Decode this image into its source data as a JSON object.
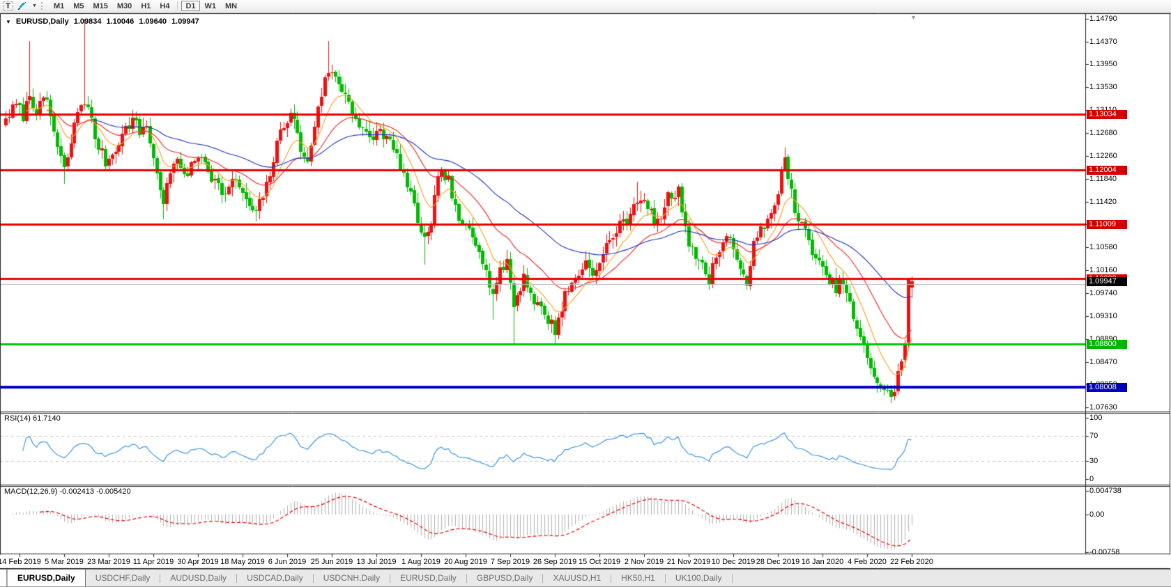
{
  "toolbar": {
    "text_tool_label": "T",
    "timeframes": [
      "M1",
      "M5",
      "M15",
      "M30",
      "H1",
      "H4",
      "D1",
      "W1",
      "MN"
    ],
    "active_timeframe": "D1"
  },
  "icons": {
    "collapse_triangle": "▼",
    "shift_marker": "▼",
    "dropdown_caret": "▼"
  },
  "chart": {
    "title": {
      "symbol_period": "EURUSD,Daily",
      "open": "1.09834",
      "high": "1.10046",
      "low": "1.09640",
      "close": "1.09947"
    }
  },
  "chart_data": {
    "type": "candlestick",
    "symbol": "EURUSD",
    "period": "Daily",
    "last_candle": {
      "open": 1.09834,
      "high": 1.10046,
      "low": 1.0964,
      "close": 1.09947
    },
    "price_axis": {
      "ticks": [
        "1.14790",
        "1.14370",
        "1.13950",
        "1.13530",
        "1.13110",
        "1.12680",
        "1.12260",
        "1.11840",
        "1.11420",
        "1.11000",
        "1.10580",
        "1.10160",
        "1.09740",
        "1.09310",
        "1.08890",
        "1.08470",
        "1.08050",
        "1.07630"
      ],
      "top_tick": 1.1479,
      "bottom_tick": 1.0763
    },
    "h_lines": [
      {
        "price": 1.13034,
        "label": "1.13034",
        "color": "#ee0000",
        "chip_bg": "#d40000",
        "width": 3
      },
      {
        "price": 1.12004,
        "label": "1.12004",
        "color": "#ee0000",
        "chip_bg": "#d40000",
        "width": 3
      },
      {
        "price": 1.11009,
        "label": "1.11009",
        "color": "#ee0000",
        "chip_bg": "#d40000",
        "width": 3
      },
      {
        "price": 1.10008,
        "label": "1.10008",
        "color": "#ee0000",
        "chip_bg": "#d40000",
        "width": 3
      },
      {
        "price": 1.088,
        "label": "1.08800",
        "color": "#00c400",
        "chip_bg": "#00b400",
        "width": 3
      },
      {
        "price": 1.08008,
        "label": "1.08008",
        "color": "#0000c8",
        "chip_bg": "#0000bb",
        "width": 4
      },
      {
        "price": 1.099,
        "label": null,
        "color": "#b8b8b8",
        "chip_bg": null,
        "width": 1
      }
    ],
    "current_price": {
      "label": "1.09947",
      "value": 1.09947,
      "chip_bg": "#000000"
    },
    "date_ticks": [
      "14 Feb 2019",
      "5 Mar 2019",
      "23 Mar 2019",
      "11 Apr 2019",
      "30 Apr 2019",
      "18 May 2019",
      "6 Jun 2019",
      "25 Jun 2019",
      "13 Jul 2019",
      "1 Aug 2019",
      "20 Aug 2019",
      "7 Sep 2019",
      "26 Sep 2019",
      "15 Oct 2019",
      "2 Nov 2019",
      "21 Nov 2019",
      "10 Dec 2019",
      "28 Dec 2019",
      "16 Jan 2020",
      "4 Feb 2020",
      "22 Feb 2020"
    ],
    "candles": {
      "count": 265,
      "candles_per_tick": 13,
      "first_tick_index": 4,
      "up_color": "#ee1111",
      "down_color": "#00bb00",
      "anchors": [
        [
          0,
          1.1295
        ],
        [
          3,
          1.132
        ],
        [
          5,
          1.13
        ],
        [
          7,
          1.134
        ],
        [
          9,
          1.131
        ],
        [
          12,
          1.133
        ],
        [
          15,
          1.124
        ],
        [
          17,
          1.12
        ],
        [
          19,
          1.125
        ],
        [
          21,
          1.131
        ],
        [
          23,
          1.133
        ],
        [
          25,
          1.129
        ],
        [
          26,
          1.126
        ],
        [
          29,
          1.1215
        ],
        [
          31,
          1.123
        ],
        [
          33,
          1.1255
        ],
        [
          35,
          1.1275
        ],
        [
          37,
          1.1295
        ],
        [
          39,
          1.127
        ],
        [
          41,
          1.1285
        ],
        [
          44,
          1.119
        ],
        [
          46,
          1.1145
        ],
        [
          49,
          1.1215
        ],
        [
          51,
          1.1205
        ],
        [
          53,
          1.1195
        ],
        [
          55,
          1.1215
        ],
        [
          57,
          1.123
        ],
        [
          60,
          1.119
        ],
        [
          62,
          1.117
        ],
        [
          64,
          1.1155
        ],
        [
          67,
          1.1185
        ],
        [
          70,
          1.114
        ],
        [
          73,
          1.112
        ],
        [
          76,
          1.117
        ],
        [
          78,
          1.122
        ],
        [
          80,
          1.127
        ],
        [
          83,
          1.131
        ],
        [
          86,
          1.124
        ],
        [
          88,
          1.121
        ],
        [
          91,
          1.132
        ],
        [
          94,
          1.1385
        ],
        [
          97,
          1.136
        ],
        [
          100,
          1.133
        ],
        [
          103,
          1.128
        ],
        [
          106,
          1.1255
        ],
        [
          109,
          1.1275
        ],
        [
          112,
          1.125
        ],
        [
          115,
          1.121
        ],
        [
          118,
          1.115
        ],
        [
          120,
          1.111
        ],
        [
          122,
          1.107
        ],
        [
          124,
          1.109
        ],
        [
          126,
          1.12
        ],
        [
          129,
          1.118
        ],
        [
          132,
          1.11
        ],
        [
          135,
          1.1095
        ],
        [
          138,
          1.106
        ],
        [
          140,
          1.101
        ],
        [
          142,
          1.0975
        ],
        [
          144,
          1.101
        ],
        [
          146,
          1.1035
        ],
        [
          148,
          1.095
        ],
        [
          151,
          1.1005
        ],
        [
          154,
          1.096
        ],
        [
          157,
          1.0935
        ],
        [
          160,
          1.0905
        ],
        [
          163,
          1.097
        ],
        [
          166,
          1.1
        ],
        [
          169,
          1.103
        ],
        [
          172,
          1.101
        ],
        [
          175,
          1.106
        ],
        [
          178,
          1.109
        ],
        [
          181,
          1.111
        ],
        [
          184,
          1.115
        ],
        [
          187,
          1.113
        ],
        [
          190,
          1.11
        ],
        [
          193,
          1.115
        ],
        [
          196,
          1.116
        ],
        [
          199,
          1.107
        ],
        [
          202,
          1.103
        ],
        [
          205,
          1.1
        ],
        [
          208,
          1.106
        ],
        [
          211,
          1.108
        ],
        [
          214,
          1.101
        ],
        [
          216,
          1.0985
        ],
        [
          218,
          1.108
        ],
        [
          221,
          1.109
        ],
        [
          224,
          1.113
        ],
        [
          227,
          1.123
        ],
        [
          230,
          1.112
        ],
        [
          233,
          1.1085
        ],
        [
          236,
          1.104
        ],
        [
          239,
          1.1
        ],
        [
          242,
          1.0985
        ],
        [
          244,
          1.0995
        ],
        [
          246,
          1.095
        ],
        [
          248,
          1.0905
        ],
        [
          250,
          1.087
        ],
        [
          252,
          1.084
        ],
        [
          254,
          1.081
        ],
        [
          256,
          1.079
        ],
        [
          258,
          1.0784
        ],
        [
          259,
          1.08
        ],
        [
          260,
          1.0825
        ],
        [
          261,
          1.085
        ],
        [
          262,
          1.0878
        ],
        [
          263,
          1.0998
        ],
        [
          264,
          1.09947
        ]
      ],
      "spikes": [
        {
          "i": 7,
          "high": 1.1438
        },
        {
          "i": 17,
          "low": 1.1175
        },
        {
          "i": 23,
          "high": 1.1478
        },
        {
          "i": 46,
          "low": 1.111
        },
        {
          "i": 73,
          "low": 1.1105
        },
        {
          "i": 94,
          "high": 1.1438
        },
        {
          "i": 122,
          "low": 1.1026
        },
        {
          "i": 142,
          "low": 1.0925
        },
        {
          "i": 148,
          "low": 1.0879
        },
        {
          "i": 160,
          "low": 1.088
        },
        {
          "i": 184,
          "high": 1.1179
        },
        {
          "i": 205,
          "low": 1.0989
        },
        {
          "i": 227,
          "high": 1.124
        },
        {
          "i": 258,
          "low": 1.0776
        }
      ],
      "overrides": [
        {
          "i": 263,
          "open": 1.0882,
          "high": 1.1001,
          "low": 1.0872,
          "close": 1.0998
        },
        {
          "i": 264,
          "open": 1.09834,
          "high": 1.10046,
          "low": 1.0964,
          "close": 1.09947
        }
      ]
    },
    "moving_averages": [
      {
        "period": 10,
        "color": "#ff9d1e"
      },
      {
        "period": 25,
        "color": "#ee2222"
      },
      {
        "period": 58,
        "color": "#1a2fc0"
      }
    ],
    "rsi": {
      "label": "RSI(14) 61.7140",
      "period": 14,
      "current": 61.714,
      "levels": [
        70,
        30
      ],
      "axis_ticks": [
        "100",
        "70",
        "30",
        "0"
      ],
      "line_color": "#3d96e8",
      "level_color": "#c8c8c8"
    },
    "macd": {
      "label": "MACD(12,26,9) -0.002413 -0.005420",
      "fast": 12,
      "slow": 26,
      "signal": 9,
      "current_macd": -0.002413,
      "current_signal": -0.00542,
      "axis_ticks": [
        "0.004738",
        "0.00",
        "-0.00758"
      ],
      "axis_max": 0.004738,
      "axis_min": -0.00758,
      "bar_color": "#b2b2b2",
      "signal_color": "#ee0000"
    }
  },
  "tabs": {
    "items": [
      "EURUSD,Daily",
      "USDCHF,Daily",
      "AUDUSD,Daily",
      "USDCAD,Daily",
      "USDCNH,Daily",
      "EURUSD,Daily",
      "GBPUSD,Daily",
      "XAUUSD,H1",
      "HK50,H1",
      "UK100,Daily"
    ],
    "active_index": 0
  }
}
